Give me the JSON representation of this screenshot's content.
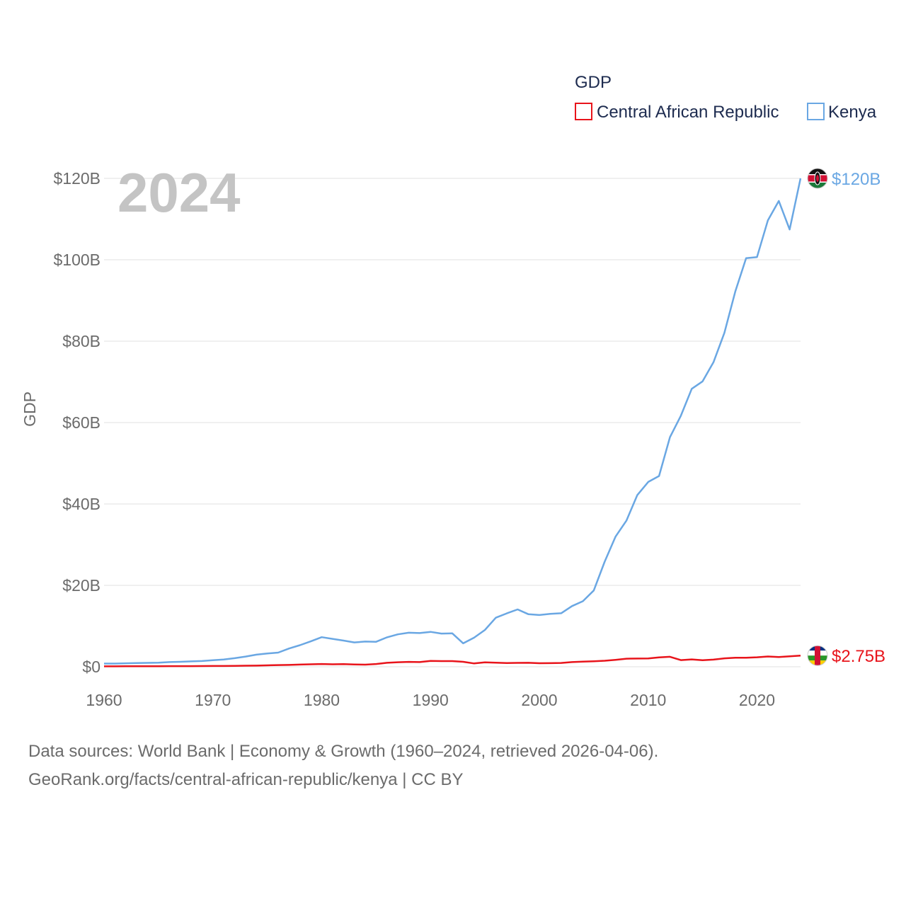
{
  "chart_data": {
    "type": "line",
    "year_label": "2024",
    "legend_title": "GDP",
    "ylabel": "GDP",
    "x_ticks": [
      "1960",
      "1970",
      "1980",
      "1990",
      "2000",
      "2010",
      "2020"
    ],
    "y_ticks": [
      "$0",
      "$20B",
      "$40B",
      "$60B",
      "$80B",
      "$100B",
      "$120B"
    ],
    "xlim": [
      1960,
      2024
    ],
    "ylim": [
      0,
      120
    ],
    "series": [
      {
        "name": "Central African Republic",
        "color": "#e8141b",
        "end_label": "$2.75B",
        "x": [
          1960,
          1961,
          1962,
          1963,
          1964,
          1965,
          1966,
          1967,
          1968,
          1969,
          1970,
          1971,
          1972,
          1973,
          1974,
          1975,
          1976,
          1977,
          1978,
          1979,
          1980,
          1981,
          1982,
          1983,
          1984,
          1985,
          1986,
          1987,
          1988,
          1989,
          1990,
          1991,
          1992,
          1993,
          1994,
          1995,
          1996,
          1997,
          1998,
          1999,
          2000,
          2001,
          2002,
          2003,
          2004,
          2005,
          2006,
          2007,
          2008,
          2009,
          2010,
          2011,
          2012,
          2013,
          2014,
          2015,
          2016,
          2017,
          2018,
          2019,
          2020,
          2021,
          2022,
          2023,
          2024
        ],
        "values": [
          0.11,
          0.11,
          0.12,
          0.13,
          0.13,
          0.14,
          0.15,
          0.15,
          0.16,
          0.18,
          0.19,
          0.2,
          0.22,
          0.26,
          0.28,
          0.35,
          0.41,
          0.46,
          0.54,
          0.6,
          0.68,
          0.6,
          0.65,
          0.55,
          0.52,
          0.68,
          0.98,
          1.12,
          1.2,
          1.14,
          1.44,
          1.39,
          1.39,
          1.22,
          0.82,
          1.1,
          0.99,
          0.9,
          0.96,
          0.97,
          0.87,
          0.88,
          0.94,
          1.14,
          1.27,
          1.35,
          1.47,
          1.7,
          1.98,
          2.01,
          2.03,
          2.32,
          2.45,
          1.64,
          1.8,
          1.62,
          1.76,
          2.07,
          2.22,
          2.22,
          2.33,
          2.52,
          2.38,
          2.56,
          2.75
        ]
      },
      {
        "name": "Kenya",
        "color": "#6aa7e3",
        "end_label": "$120B",
        "x": [
          1960,
          1961,
          1962,
          1963,
          1964,
          1965,
          1966,
          1967,
          1968,
          1969,
          1970,
          1971,
          1972,
          1973,
          1974,
          1975,
          1976,
          1977,
          1978,
          1979,
          1980,
          1981,
          1982,
          1983,
          1984,
          1985,
          1986,
          1987,
          1988,
          1989,
          1990,
          1991,
          1992,
          1993,
          1994,
          1995,
          1996,
          1997,
          1998,
          1999,
          2000,
          2001,
          2002,
          2003,
          2004,
          2005,
          2006,
          2007,
          2008,
          2009,
          2010,
          2011,
          2012,
          2013,
          2014,
          2015,
          2016,
          2017,
          2018,
          2019,
          2020,
          2021,
          2022,
          2023,
          2024
        ],
        "values": [
          0.79,
          0.79,
          0.85,
          0.9,
          0.96,
          0.99,
          1.15,
          1.22,
          1.32,
          1.41,
          1.6,
          1.77,
          2.11,
          2.5,
          2.98,
          3.26,
          3.47,
          4.49,
          5.3,
          6.24,
          7.27,
          6.85,
          6.43,
          5.98,
          6.19,
          6.14,
          7.24,
          7.97,
          8.36,
          8.28,
          8.57,
          8.15,
          8.21,
          5.75,
          7.15,
          9.05,
          12.05,
          13.12,
          14.09,
          12.9,
          12.71,
          12.99,
          13.15,
          14.9,
          16.1,
          18.74,
          25.83,
          31.96,
          35.9,
          42.2,
          45.41,
          46.87,
          56.4,
          61.67,
          68.29,
          70.12,
          74.82,
          82.04,
          92.2,
          100.38,
          100.66,
          109.7,
          114.45,
          107.44,
          120.0
        ]
      }
    ]
  },
  "footer": {
    "source_line1": "Data sources: World Bank | Economy & Growth (1960–2024, retrieved 2026-04-06).",
    "source_line2": "GeoRank.org/facts/central-african-republic/kenya | CC BY"
  }
}
